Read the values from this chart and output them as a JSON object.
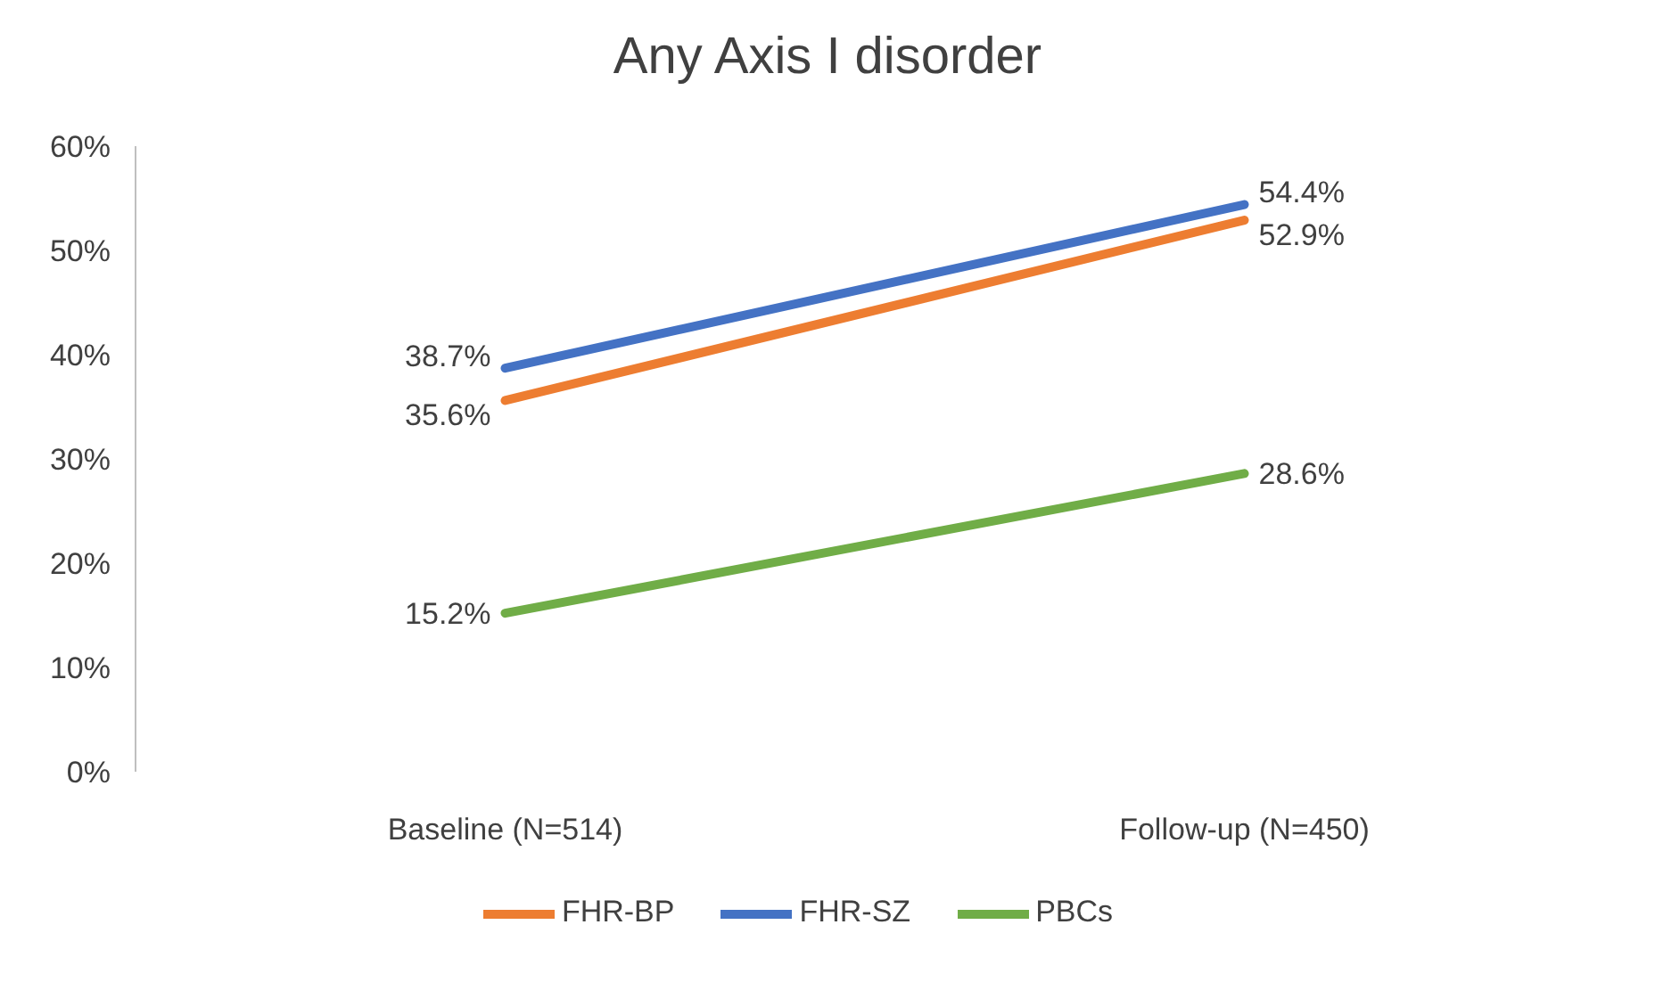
{
  "chart_data": {
    "type": "line",
    "title": "Any Axis I disorder",
    "categories": [
      "Baseline (N=514)",
      "Follow-up (N=450)"
    ],
    "series": [
      {
        "name": "FHR-SZ",
        "color": "#4472c4",
        "values": [
          38.7,
          54.4
        ],
        "value_labels": [
          "38.7%",
          "54.4%"
        ]
      },
      {
        "name": "FHR-BP",
        "color": "#ed7d31",
        "values": [
          35.6,
          52.9
        ],
        "value_labels": [
          "35.6%",
          "52.9%"
        ]
      },
      {
        "name": "PBCs",
        "color": "#70ad47",
        "values": [
          15.2,
          28.6
        ],
        "value_labels": [
          "15.2%",
          "28.6%"
        ]
      }
    ],
    "ylim": [
      0,
      60
    ],
    "yticks": [
      {
        "value": 0,
        "label": "0%"
      },
      {
        "value": 10,
        "label": "10%"
      },
      {
        "value": 20,
        "label": "20%"
      },
      {
        "value": 30,
        "label": "30%"
      },
      {
        "value": 40,
        "label": "40%"
      },
      {
        "value": 50,
        "label": "50%"
      },
      {
        "value": 60,
        "label": "60%"
      }
    ],
    "grid": false,
    "legend": "bottom",
    "marker": "none",
    "line_style": "solid"
  }
}
